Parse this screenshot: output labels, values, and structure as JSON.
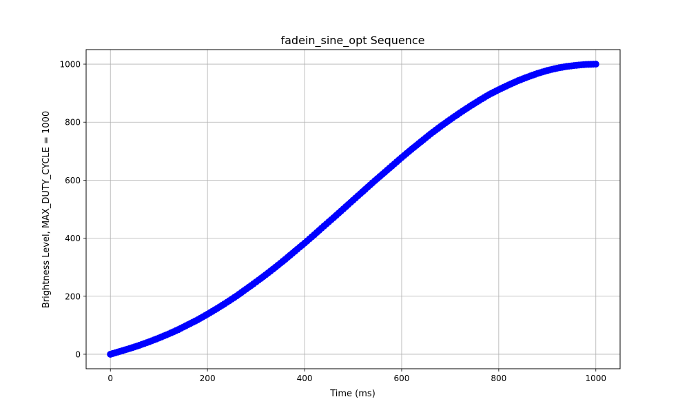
{
  "chart_data": {
    "type": "scatter",
    "title": "fadein_sine_opt Sequence",
    "xlabel": "Time (ms)",
    "ylabel": "Brightness Level, MAX_DUTY_CYCLE = 1000",
    "xlim": [
      -50,
      1050
    ],
    "ylim": [
      -50,
      1050
    ],
    "x_ticks": [
      0,
      200,
      400,
      600,
      800,
      1000
    ],
    "y_ticks": [
      0,
      200,
      400,
      600,
      800,
      1000
    ],
    "x_tick_labels": [
      "0",
      "200",
      "400",
      "600",
      "800",
      "1000"
    ],
    "y_tick_labels": [
      "0",
      "200",
      "400",
      "600",
      "800",
      "1000"
    ],
    "grid": true,
    "marker_color": "#0000ff",
    "series": [
      {
        "x": [
          0,
          20,
          40,
          60,
          80,
          100,
          120,
          140,
          160,
          180,
          200,
          220,
          240,
          260,
          280,
          300,
          320,
          340,
          360,
          380,
          400,
          420,
          440,
          460,
          480,
          500,
          520,
          540,
          560,
          580,
          600,
          620,
          640,
          660,
          680,
          700,
          720,
          740,
          760,
          780,
          800,
          820,
          840,
          860,
          880,
          900,
          920,
          940,
          960,
          980,
          1000
        ],
        "y": [
          0,
          10,
          20,
          31,
          43,
          56,
          70,
          85,
          102,
          119,
          138,
          158,
          179,
          201,
          225,
          249,
          274,
          300,
          327,
          355,
          383,
          412,
          442,
          471,
          501,
          531,
          561,
          591,
          620,
          649,
          678,
          706,
          733,
          760,
          785,
          809,
          832,
          854,
          875,
          895,
          912,
          928,
          943,
          956,
          968,
          978,
          986,
          992,
          996,
          999,
          1000
        ]
      }
    ]
  }
}
